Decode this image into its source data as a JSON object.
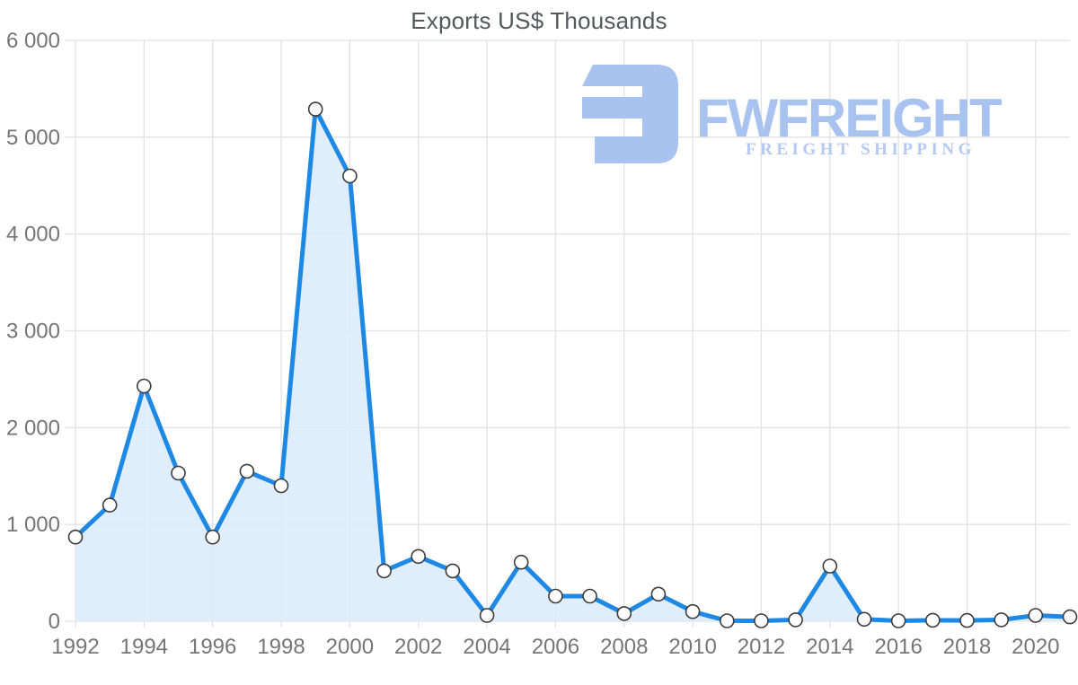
{
  "page": {
    "title": "Exports US$ Thousands"
  },
  "logo": {
    "name": "FWFREIGHT",
    "tagline": "FREIGHT SHIPPING",
    "mark_color": "#a9c3f0",
    "text_color": "#a9c3f0",
    "tagline_color": "#b5c9f3"
  },
  "colors": {
    "line": "#1e88e5",
    "area": "#ddecfb",
    "marker_fill": "#ffffff",
    "marker_stroke": "#3c3c3c",
    "grid": "#e2e2e2",
    "tick_text": "#767676",
    "title_text": "#55585c",
    "background": "#ffffff"
  },
  "chart_data": {
    "type": "area",
    "title": "Exports US$ Thousands",
    "xlabel": "",
    "ylabel": "",
    "grid": true,
    "legend": false,
    "ylim": [
      0,
      6000
    ],
    "x": [
      1992,
      1993,
      1994,
      1995,
      1996,
      1997,
      1998,
      1999,
      2000,
      2001,
      2002,
      2003,
      2004,
      2005,
      2006,
      2007,
      2008,
      2009,
      2010,
      2011,
      2012,
      2013,
      2014,
      2015,
      2016,
      2017,
      2018,
      2019,
      2020,
      2021
    ],
    "series": [
      {
        "name": "Exports US$ Thousands",
        "values": [
          870,
          1200,
          2430,
          1530,
          870,
          1550,
          1400,
          5290,
          4600,
          520,
          670,
          520,
          60,
          610,
          260,
          260,
          80,
          280,
          100,
          5,
          5,
          15,
          570,
          20,
          5,
          10,
          8,
          15,
          60,
          45
        ]
      }
    ],
    "y_ticks": [
      {
        "value": 0,
        "label": "0"
      },
      {
        "value": 1000,
        "label": "1 000"
      },
      {
        "value": 2000,
        "label": "2 000"
      },
      {
        "value": 3000,
        "label": "3 000"
      },
      {
        "value": 4000,
        "label": "4 000"
      },
      {
        "value": 5000,
        "label": "5 000"
      },
      {
        "value": 6000,
        "label": "6 000"
      }
    ],
    "x_ticks": [
      {
        "value": 1992,
        "label": "1992"
      },
      {
        "value": 1994,
        "label": "1994"
      },
      {
        "value": 1996,
        "label": "1996"
      },
      {
        "value": 1998,
        "label": "1998"
      },
      {
        "value": 2000,
        "label": "2000"
      },
      {
        "value": 2002,
        "label": "2002"
      },
      {
        "value": 2004,
        "label": "2004"
      },
      {
        "value": 2006,
        "label": "2006"
      },
      {
        "value": 2008,
        "label": "2008"
      },
      {
        "value": 2010,
        "label": "2010"
      },
      {
        "value": 2012,
        "label": "2012"
      },
      {
        "value": 2014,
        "label": "2014"
      },
      {
        "value": 2016,
        "label": "2016"
      },
      {
        "value": 2018,
        "label": "2018"
      },
      {
        "value": 2020,
        "label": "2020"
      }
    ]
  }
}
